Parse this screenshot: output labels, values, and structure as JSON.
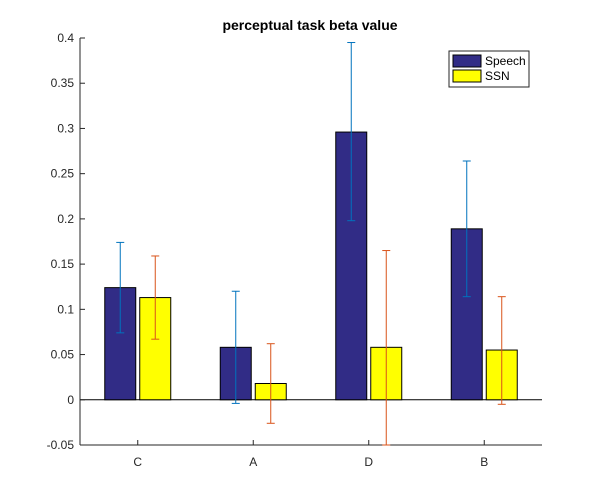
{
  "chart_data": {
    "type": "bar",
    "title": "perceptual task beta value",
    "xlabel": "",
    "ylabel": "",
    "categories": [
      "C",
      "A",
      "D",
      "B"
    ],
    "ylim": [
      -0.05,
      0.4
    ],
    "yticks": [
      -0.05,
      0,
      0.05,
      0.1,
      0.15,
      0.2,
      0.25,
      0.3,
      0.35,
      0.4
    ],
    "ytick_labels": [
      "-0.05",
      "0",
      "0.05",
      "0.1",
      "0.15",
      "0.2",
      "0.25",
      "0.3",
      "0.35",
      "0.4"
    ],
    "grid": false,
    "legend_position": "top-right",
    "series": [
      {
        "name": "Speech",
        "color": "#312c86",
        "error_color": "#0072bd",
        "values": [
          0.124,
          0.058,
          0.296,
          0.189
        ],
        "err_low": [
          0.074,
          -0.004,
          0.198,
          0.114
        ],
        "err_high": [
          0.174,
          0.12,
          0.395,
          0.264
        ]
      },
      {
        "name": "SSN",
        "color": "#ffff00",
        "error_color": "#d95319",
        "values": [
          0.113,
          0.018,
          0.058,
          0.055
        ],
        "err_low": [
          0.067,
          -0.026,
          -0.05,
          -0.005
        ],
        "err_high": [
          0.159,
          0.062,
          0.165,
          0.114
        ]
      }
    ]
  }
}
